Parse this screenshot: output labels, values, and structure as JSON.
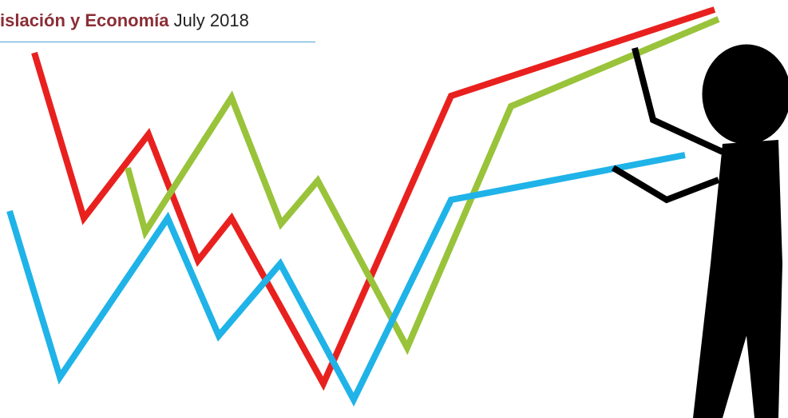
{
  "header": {
    "section": "islación y Economía",
    "date": "July 2018"
  }
}
